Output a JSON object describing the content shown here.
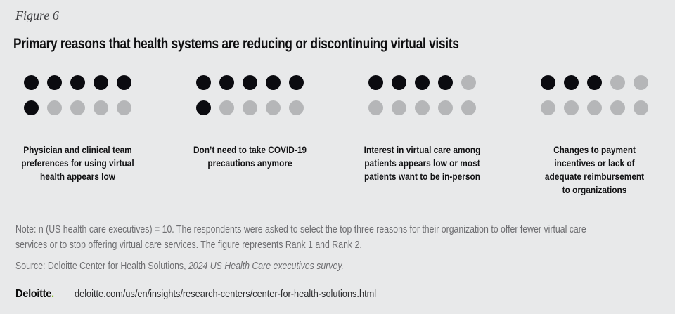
{
  "figure_label": "Figure 6",
  "title": "Primary reasons that health systems are reducing or discontinuing virtual visits",
  "chart_data": {
    "type": "pictograph-dot-matrix",
    "title": "Primary reasons that health systems are reducing or discontinuing virtual visits",
    "unit_total": 10,
    "dots_per_row": 5,
    "categories": [
      "Physician and clinical team preferences for using virtual health appears low",
      "Don’t need to take COVID-19 precautions anymore",
      "Interest in virtual care among patients appears low or most patients want to be in-person",
      "Changes to payment incentives or lack of adequate reimbursement to organizations"
    ],
    "category_lines": [
      [
        "Physician and clinical team",
        "preferences for using virtual",
        "health appears low"
      ],
      [
        "Don’t need to take COVID-19",
        "precautions anymore"
      ],
      [
        "Interest in virtual care among",
        "patients appears low or most",
        "patients want to be in-person"
      ],
      [
        "Changes to payment",
        "incentives or lack of",
        "adequate reimbursement",
        "to organizations"
      ]
    ],
    "values": [
      6,
      6,
      4,
      3
    ],
    "filled_color": "#0b0b10",
    "empty_color": "#b5b6b8",
    "legend": "filled dots = number of executives (out of 10) selecting reason as Rank 1 or Rank 2"
  },
  "note": "Note: n (US health care executives) = 10. The respondents were asked to select the top three reasons for their organization to offer fewer virtual care\nservices or to stop offering virtual care services. The figure represents Rank 1 and Rank 2.",
  "source": {
    "prefix": "Source: Deloitte Center for Health Solutions, ",
    "italic": "2024 US Health Care executives survey."
  },
  "footer": {
    "brand": "Deloitte",
    "brand_dot": ".",
    "url": "deloitte.com/us/en/insights/research-centers/center-for-health-solutions.html"
  },
  "colors": {
    "background": "#e8e9ea",
    "accent_green": "#86bc25",
    "dot_filled": "#0b0b10",
    "dot_empty": "#b5b6b8",
    "muted_text": "#6e6e71"
  }
}
